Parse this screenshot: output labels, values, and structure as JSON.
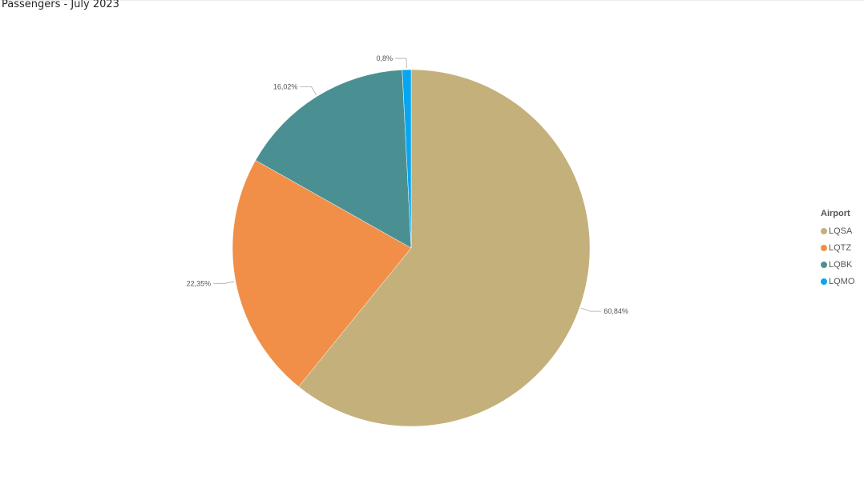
{
  "title": "Passengers - July 2023",
  "chart_data": {
    "type": "pie",
    "title": "Passengers - July 2023",
    "legend_title": "Airport",
    "legend_position": "right",
    "slices": [
      {
        "name": "LQSA",
        "value": 60.84,
        "label": "60,84%",
        "color": "#C4B07B"
      },
      {
        "name": "LQTZ",
        "value": 22.35,
        "label": "22,35%",
        "color": "#F18F49"
      },
      {
        "name": "LQBK",
        "value": 16.02,
        "label": "16,02%",
        "color": "#4A9093"
      },
      {
        "name": "LQMO",
        "value": 0.8,
        "label": "0,8%",
        "color": "#07A6F0"
      }
    ]
  }
}
